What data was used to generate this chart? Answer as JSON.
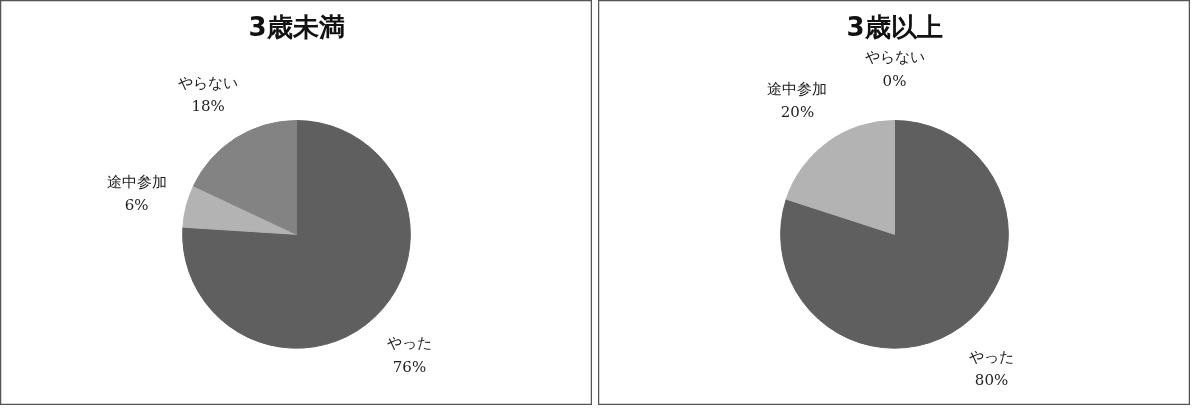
{
  "chart_data": [
    {
      "type": "pie",
      "title": "3歳未満",
      "categories": [
        "やった",
        "途中参加",
        "やらない"
      ],
      "values": [
        76,
        6,
        18
      ],
      "value_labels": [
        "76%",
        "6%",
        "18%"
      ],
      "colors": [
        "#5f5f5f",
        "#b3b3b3",
        "#838383"
      ]
    },
    {
      "type": "pie",
      "title": "3歳以上",
      "categories": [
        "やった",
        "途中参加",
        "やらない"
      ],
      "values": [
        80,
        20,
        0
      ],
      "value_labels": [
        "80%",
        "20%",
        "0%"
      ],
      "colors": [
        "#5f5f5f",
        "#b3b3b3",
        "#838383"
      ]
    }
  ]
}
